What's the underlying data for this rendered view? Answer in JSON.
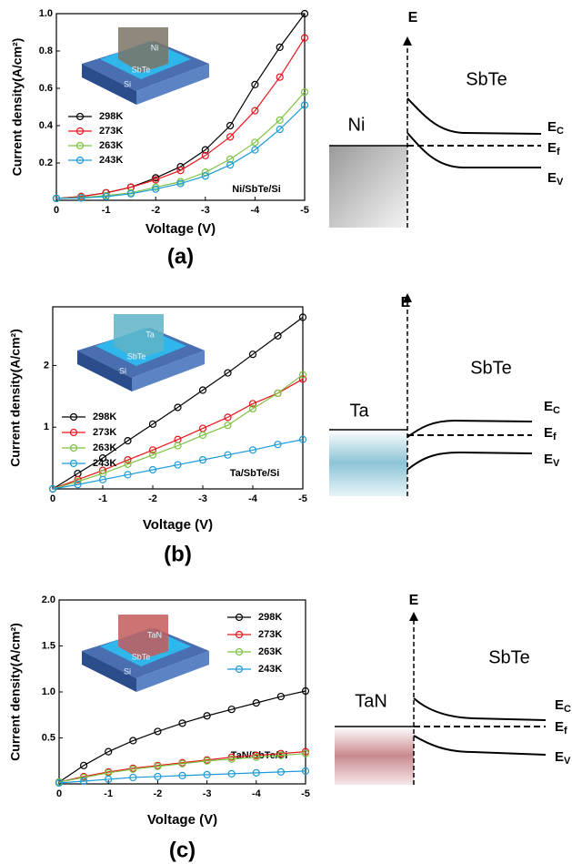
{
  "chart_data": [
    {
      "type": "line",
      "panel_label": "(a)",
      "xlabel": "Voltage (V)",
      "ylabel": "Current density(A/cm²)",
      "annotations": [
        "Ni/SbTe/Si"
      ],
      "inset_labels": [
        "Ni",
        "SbTe",
        "Si"
      ],
      "legend": "lower left",
      "x": [
        0,
        -0.5,
        -1,
        -1.5,
        -2,
        -2.5,
        -3,
        -3.5,
        -4,
        -4.5,
        -5
      ],
      "xlim": [
        0,
        -5
      ],
      "xticks": [
        0,
        -1,
        -2,
        -3,
        -4,
        -5
      ],
      "ylim": [
        0,
        1
      ],
      "yticks": [
        0.2,
        0.4,
        0.6,
        0.8,
        {
          "value": 1,
          "label": "1.0"
        }
      ],
      "series": [
        {
          "name": "298K",
          "color": "#000000",
          "values": [
            0.01,
            0.02,
            0.04,
            0.07,
            0.12,
            0.18,
            0.27,
            0.4,
            0.62,
            0.82,
            1.0
          ]
        },
        {
          "name": "273K",
          "color": "#e8141b",
          "values": [
            0.01,
            0.02,
            0.04,
            0.07,
            0.11,
            0.16,
            0.24,
            0.34,
            0.48,
            0.66,
            0.87
          ]
        },
        {
          "name": "263K",
          "color": "#7cc242",
          "values": [
            0.01,
            0.015,
            0.025,
            0.04,
            0.07,
            0.1,
            0.15,
            0.22,
            0.31,
            0.43,
            0.58
          ]
        },
        {
          "name": "243K",
          "color": "#1c9ad6",
          "values": [
            0.01,
            0.012,
            0.02,
            0.035,
            0.06,
            0.09,
            0.13,
            0.19,
            0.27,
            0.38,
            0.51
          ]
        }
      ]
    },
    {
      "type": "line",
      "panel_label": "(b)",
      "xlabel": "Voltage (V)",
      "ylabel": "Current density(A/cm²)",
      "annotations": [
        "Ta/SbTe/Si"
      ],
      "inset_labels": [
        "Ta",
        "SbTe",
        "Si"
      ],
      "legend": "lower left",
      "x": [
        0,
        -0.5,
        -1,
        -1.5,
        -2,
        -2.5,
        -3,
        -3.5,
        -4,
        -4.5,
        -5
      ],
      "xlim": [
        0,
        -5
      ],
      "xticks": [
        0,
        -1,
        -2,
        -3,
        -4,
        -5
      ],
      "ylim": [
        0,
        2.95
      ],
      "yticks": [
        1,
        2
      ],
      "series": [
        {
          "name": "298K",
          "color": "#000000",
          "values": [
            0,
            0.25,
            0.5,
            0.78,
            1.05,
            1.32,
            1.6,
            1.88,
            2.18,
            2.48,
            2.78
          ]
        },
        {
          "name": "273K",
          "color": "#e8141b",
          "values": [
            0,
            0.15,
            0.3,
            0.47,
            0.63,
            0.8,
            0.98,
            1.16,
            1.38,
            1.55,
            1.78
          ]
        },
        {
          "name": "263K",
          "color": "#7cc242",
          "values": [
            0,
            0.12,
            0.25,
            0.4,
            0.55,
            0.7,
            0.87,
            1.03,
            1.3,
            1.55,
            1.85
          ]
        },
        {
          "name": "243K",
          "color": "#1c9ad6",
          "values": [
            0,
            0.07,
            0.15,
            0.23,
            0.31,
            0.39,
            0.47,
            0.55,
            0.63,
            0.72,
            0.8
          ]
        }
      ]
    },
    {
      "type": "line",
      "panel_label": "(c)",
      "xlabel": "Voltage (V)",
      "ylabel": "Current density(A/cm²)",
      "annotations": [
        "TaN/SbTe/Si"
      ],
      "inset_labels": [
        "TaN",
        "SbTe",
        "Si"
      ],
      "legend": "upper right",
      "x": [
        0,
        -0.5,
        -1,
        -1.5,
        -2,
        -2.5,
        -3,
        -3.5,
        -4,
        -4.5,
        -5
      ],
      "xlim": [
        0,
        -5
      ],
      "xticks": [
        0,
        -1,
        -2,
        -3,
        -4,
        -5
      ],
      "ylim": [
        0,
        2
      ],
      "yticks": [
        0.5,
        {
          "value": 1,
          "label": "1.0"
        },
        1.5,
        {
          "value": 2,
          "label": "2.0"
        }
      ],
      "series": [
        {
          "name": "298K",
          "color": "#000000",
          "values": [
            0.02,
            0.2,
            0.35,
            0.47,
            0.57,
            0.66,
            0.74,
            0.81,
            0.88,
            0.95,
            1.01
          ]
        },
        {
          "name": "273K",
          "color": "#e8141b",
          "values": [
            0.02,
            0.08,
            0.13,
            0.17,
            0.2,
            0.23,
            0.26,
            0.29,
            0.31,
            0.33,
            0.35
          ]
        },
        {
          "name": "263K",
          "color": "#7cc242",
          "values": [
            0.02,
            0.07,
            0.12,
            0.16,
            0.19,
            0.22,
            0.25,
            0.27,
            0.29,
            0.31,
            0.33
          ]
        },
        {
          "name": "243K",
          "color": "#1c9ad6",
          "values": [
            0.01,
            0.03,
            0.05,
            0.07,
            0.08,
            0.09,
            0.1,
            0.11,
            0.12,
            0.13,
            0.14
          ]
        }
      ]
    }
  ],
  "band_diagrams": [
    {
      "axis_label": "E",
      "semiconductor": "SbTe",
      "metal": "Ni",
      "levels": [
        {
          "symbol": "E",
          "subscript": "C"
        },
        {
          "symbol": "E",
          "subscript": "f"
        },
        {
          "symbol": "E",
          "subscript": "V"
        }
      ]
    },
    {
      "axis_label": "E",
      "semiconductor": "SbTe",
      "metal": "Ta",
      "levels": [
        {
          "symbol": "E",
          "subscript": "C"
        },
        {
          "symbol": "E",
          "subscript": "f"
        },
        {
          "symbol": "E",
          "subscript": "V"
        }
      ]
    },
    {
      "axis_label": "E",
      "semiconductor": "SbTe",
      "metal": "TaN",
      "levels": [
        {
          "symbol": "E",
          "subscript": "C"
        },
        {
          "symbol": "E",
          "subscript": "f"
        },
        {
          "symbol": "E",
          "subscript": "V"
        }
      ]
    }
  ]
}
